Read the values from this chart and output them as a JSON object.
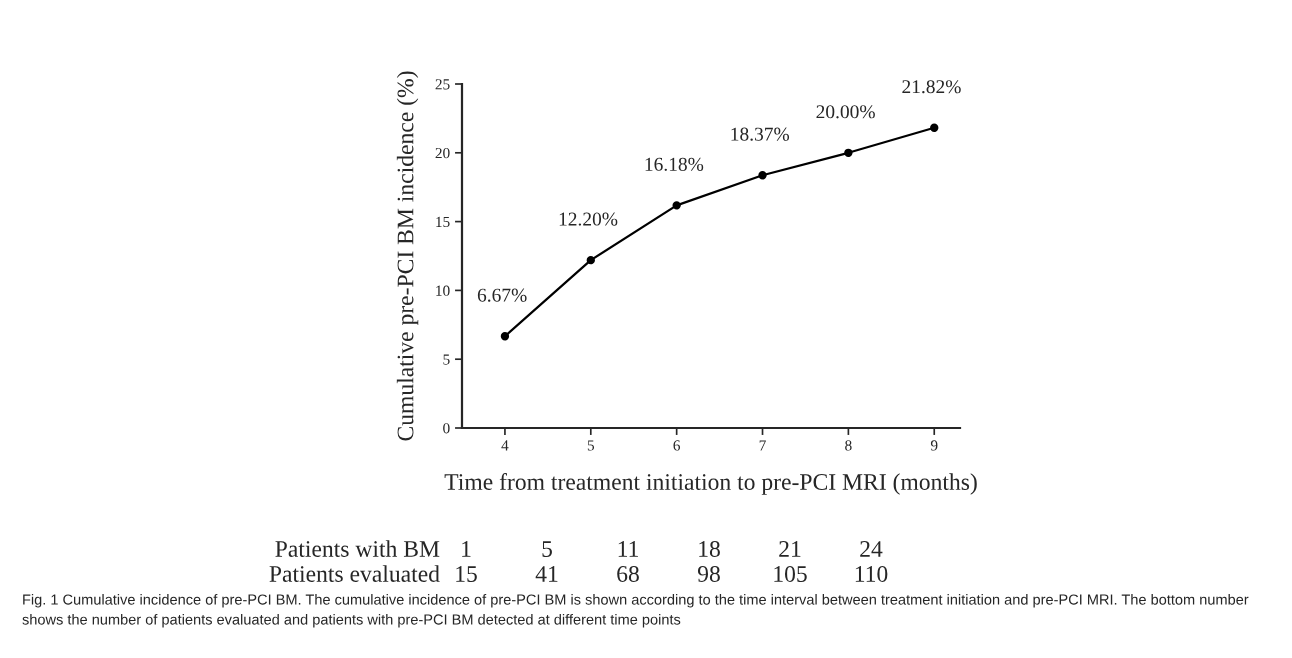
{
  "chart_data": {
    "type": "line",
    "xlabel": "Time from treatment initiation to pre-PCI MRI (months)",
    "ylabel": "Cumulative pre-PCI BM incidence (%)",
    "x": [
      4,
      5,
      6,
      7,
      8,
      9
    ],
    "series": [
      {
        "color": "#000000",
        "values": [
          6.67,
          12.2,
          16.18,
          18.37,
          20.0,
          21.82
        ],
        "value_labels": [
          "6.67%",
          "12.20%",
          "16.18%",
          "18.37%",
          "20.00%",
          "21.82%"
        ]
      }
    ],
    "xlim": [
      3.5,
      9.3
    ],
    "xticks": [
      4,
      5,
      6,
      7,
      8,
      9
    ],
    "ylim": [
      0,
      25
    ],
    "yticks": [
      0,
      5,
      10,
      15,
      20,
      25
    ],
    "marker": "circle",
    "line_style": "solid",
    "grid": false,
    "legend": false,
    "annotations": [
      "Patients with BM",
      "1",
      "5",
      "11",
      "18",
      "21",
      "24",
      "Patients evaluated",
      "15",
      "41",
      "68",
      "98",
      "105",
      "110",
      "Fig. 1 Cumulative incidence of pre-PCI BM. The cumulative incidence of pre-PCI BM is shown according to the time interval between treatment initiation and pre-PCI MRI. The bottom number shows the number of patients evaluated and patients with pre-PCI BM detected at different time points"
    ]
  }
}
